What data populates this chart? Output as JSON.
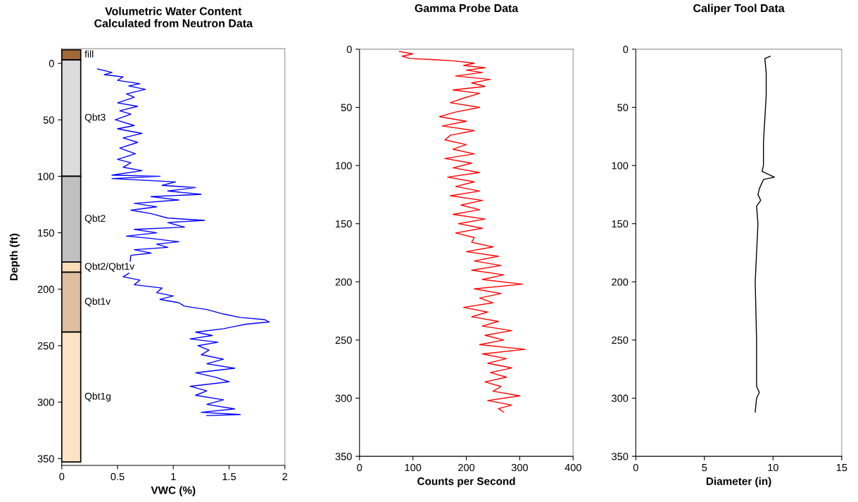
{
  "chart_data": [
    {
      "type": "line",
      "title": "Volumetric Water Content\nCalculated from Neutron Data",
      "xlabel": "VWC (%)",
      "ylabel": "Depth (ft)",
      "orientation": "horizontal",
      "xlim": [
        0,
        2
      ],
      "xticks": [
        0,
        0.5,
        1,
        1.5,
        2
      ],
      "ylim": [
        356,
        -13
      ],
      "yticks": [
        0,
        50,
        100,
        150,
        200,
        250,
        300,
        350
      ],
      "grid": false,
      "legend": false,
      "marker": "none",
      "line_style": "solid",
      "bands": [
        {
          "axis": "y",
          "from": -12,
          "to": -3,
          "label": "fill",
          "color": "#a0693a"
        },
        {
          "axis": "y",
          "from": -3,
          "to": 100,
          "label": "Qbt3",
          "color": "#dcdcdc"
        },
        {
          "axis": "y",
          "from": 100,
          "to": 176,
          "label": "Qbt2",
          "color": "#c0c0c0"
        },
        {
          "axis": "y",
          "from": 176,
          "to": 185,
          "label": "Qbt2/Qbt1v",
          "color": "#fbdcb8"
        },
        {
          "axis": "y",
          "from": 185,
          "to": 238,
          "label": "Qbt1v",
          "color": "#dfbf9f"
        },
        {
          "axis": "y",
          "from": 238,
          "to": 353,
          "label": "Qbt1g",
          "color": "#fde3c6"
        }
      ],
      "series": [
        {
          "color": "#0000ff",
          "x": [
            5,
            8,
            10,
            12,
            15,
            18,
            20,
            23,
            27,
            30,
            35,
            38,
            42,
            45,
            50,
            55,
            58,
            62,
            66,
            70,
            75,
            80,
            85,
            88,
            92,
            95,
            99,
            100,
            102,
            105,
            108,
            110,
            113,
            116,
            118,
            121,
            124,
            127,
            130,
            133,
            137,
            139,
            141,
            145,
            147,
            150,
            153,
            155,
            158,
            160,
            163,
            165,
            168,
            170,
            186,
            189,
            192,
            196,
            199,
            203,
            206,
            209,
            212,
            215,
            218,
            222,
            225,
            227,
            229,
            231,
            233,
            235,
            238,
            241,
            244,
            247,
            250,
            254,
            258,
            262,
            266,
            270,
            274,
            278,
            282,
            286,
            290,
            294,
            298,
            302,
            306,
            309,
            311,
            312
          ],
          "values": [
            0.32,
            0.45,
            0.38,
            0.55,
            0.5,
            0.7,
            0.6,
            0.75,
            0.58,
            0.65,
            0.5,
            0.68,
            0.52,
            0.62,
            0.48,
            0.65,
            0.5,
            0.72,
            0.55,
            0.68,
            0.52,
            0.66,
            0.5,
            0.62,
            0.55,
            0.72,
            0.45,
            0.88,
            0.45,
            1.02,
            0.9,
            1.2,
            0.95,
            1.25,
            0.8,
            1.05,
            0.65,
            0.85,
            0.62,
            0.8,
            0.95,
            1.28,
            0.95,
            1.1,
            0.65,
            0.85,
            0.58,
            0.8,
            1.05,
            0.85,
            0.95,
            0.65,
            0.8,
            0.62,
            0.6,
            0.55,
            0.7,
            0.65,
            0.9,
            0.85,
            1.0,
            0.88,
            1.05,
            1.1,
            1.3,
            1.45,
            1.6,
            1.82,
            1.86,
            1.65,
            1.55,
            1.45,
            1.2,
            1.35,
            1.15,
            1.4,
            1.22,
            1.32,
            1.25,
            1.45,
            1.3,
            1.55,
            1.2,
            1.38,
            1.5,
            1.15,
            1.3,
            1.2,
            1.45,
            1.3,
            1.55,
            1.25,
            1.6,
            1.3
          ]
        }
      ]
    },
    {
      "type": "line",
      "title": "Gamma Probe Data",
      "xlabel": "Counts per Second",
      "orientation": "horizontal",
      "xlim": [
        0,
        400
      ],
      "xticks": [
        0,
        100,
        200,
        300,
        400
      ],
      "ylim": [
        350,
        0
      ],
      "yticks": [
        0,
        50,
        100,
        150,
        200,
        250,
        300,
        350
      ],
      "grid": false,
      "legend": false,
      "marker": "none",
      "line_style": "solid",
      "series": [
        {
          "color": "#ff0000",
          "x": [
            2,
            4,
            6,
            8,
            9,
            10,
            12,
            14,
            16,
            18,
            20,
            23,
            26,
            29,
            32,
            35,
            38,
            42,
            46,
            50,
            54,
            58,
            62,
            66,
            70,
            74,
            78,
            82,
            86,
            90,
            94,
            98,
            102,
            106,
            110,
            114,
            118,
            122,
            126,
            130,
            134,
            138,
            142,
            146,
            150,
            154,
            158,
            162,
            166,
            170,
            174,
            178,
            182,
            186,
            190,
            194,
            198,
            202,
            206,
            210,
            214,
            218,
            222,
            226,
            230,
            234,
            238,
            242,
            246,
            250,
            254,
            258,
            262,
            266,
            270,
            274,
            278,
            282,
            286,
            290,
            294,
            298,
            302,
            306,
            309,
            312
          ],
          "values": [
            75,
            100,
            80,
            95,
            140,
            175,
            215,
            195,
            235,
            200,
            230,
            180,
            245,
            210,
            235,
            175,
            225,
            195,
            170,
            225,
            180,
            150,
            200,
            155,
            215,
            170,
            160,
            200,
            175,
            215,
            160,
            210,
            175,
            225,
            165,
            215,
            180,
            225,
            170,
            230,
            190,
            225,
            175,
            235,
            185,
            230,
            180,
            215,
            210,
            250,
            200,
            260,
            215,
            265,
            210,
            270,
            230,
            305,
            215,
            265,
            225,
            250,
            195,
            240,
            210,
            260,
            230,
            285,
            235,
            270,
            225,
            310,
            230,
            275,
            240,
            285,
            245,
            275,
            235,
            265,
            250,
            300,
            240,
            285,
            260,
            270
          ]
        }
      ]
    },
    {
      "type": "line",
      "title": "Caliper Tool Data",
      "xlabel": "Diameter (in)",
      "orientation": "horizontal",
      "xlim": [
        0,
        15
      ],
      "xticks": [
        0,
        5,
        10,
        15
      ],
      "ylim": [
        350,
        0
      ],
      "yticks": [
        0,
        50,
        100,
        150,
        200,
        250,
        300,
        350
      ],
      "grid": false,
      "legend": false,
      "marker": "none",
      "line_style": "solid",
      "series": [
        {
          "color": "#000000",
          "x": [
            6,
            8,
            20,
            40,
            60,
            80,
            100,
            105,
            110,
            112,
            120,
            125,
            130,
            135,
            150,
            175,
            200,
            250,
            290,
            295,
            300,
            312
          ],
          "values": [
            9.8,
            9.4,
            9.5,
            9.5,
            9.4,
            9.3,
            9.3,
            9.2,
            10.1,
            9.3,
            9.0,
            8.9,
            9.1,
            8.8,
            8.9,
            8.8,
            8.7,
            8.8,
            8.8,
            9.0,
            8.8,
            8.7
          ]
        }
      ]
    }
  ]
}
